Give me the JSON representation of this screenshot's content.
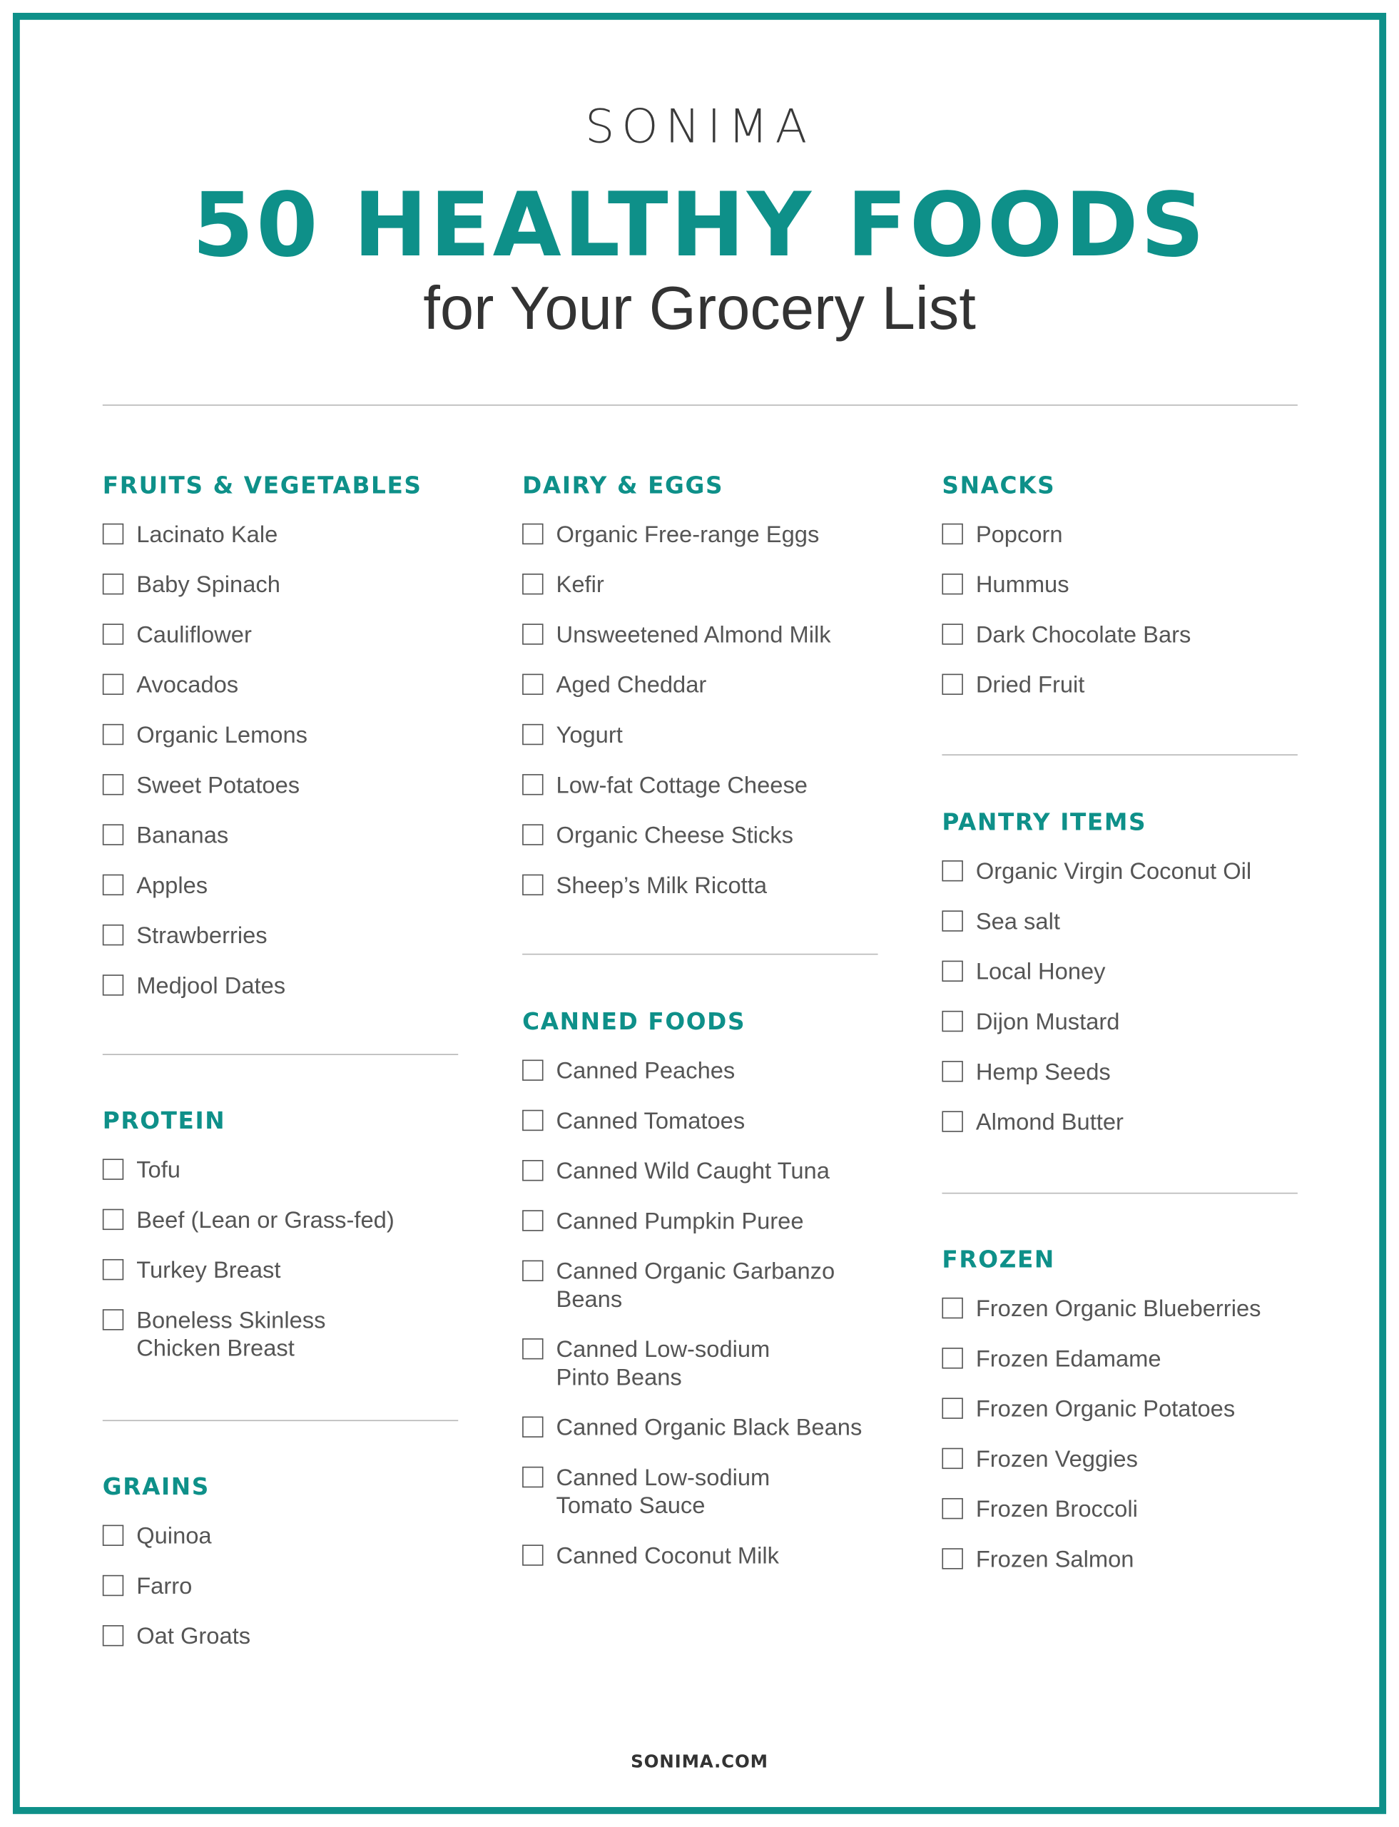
{
  "header": {
    "logo": "SONIMA",
    "title": "50 HEALTHY FOODS",
    "subtitle": "for Your Grocery List"
  },
  "colors": {
    "accent": "#0e9089",
    "text": "#555555",
    "rule": "#b8b8b8"
  },
  "columns": [
    [
      {
        "heading": "FRUITS & VEGETABLES",
        "items": [
          "Lacinato Kale",
          "Baby Spinach",
          "Cauliflower",
          "Avocados",
          "Organic Lemons",
          "Sweet Potatoes",
          "Bananas",
          "Apples",
          "Strawberries",
          "Medjool Dates"
        ]
      },
      {
        "heading": "PROTEIN",
        "items": [
          "Tofu",
          "Beef (Lean or Grass-fed)",
          "Turkey Breast",
          "Boneless Skinless\nChicken Breast"
        ]
      },
      {
        "heading": "GRAINS",
        "items": [
          "Quinoa",
          "Farro",
          "Oat Groats"
        ]
      }
    ],
    [
      {
        "heading": "DAIRY & EGGS",
        "items": [
          "Organic Free-range Eggs",
          "Kefir",
          "Unsweetened Almond Milk",
          "Aged Cheddar",
          "Yogurt",
          "Low-fat Cottage Cheese",
          "Organic Cheese Sticks",
          "Sheep’s Milk Ricotta"
        ]
      },
      {
        "heading": "CANNED FOODS",
        "items": [
          "Canned Peaches",
          "Canned Tomatoes",
          "Canned Wild Caught Tuna",
          "Canned Pumpkin Puree",
          "Canned Organic Garbanzo\nBeans",
          "Canned Low-sodium\nPinto Beans",
          "Canned Organic Black Beans",
          "Canned Low-sodium\nTomato Sauce",
          "Canned Coconut Milk"
        ]
      }
    ],
    [
      {
        "heading": "SNACKS",
        "items": [
          "Popcorn",
          "Hummus",
          "Dark Chocolate Bars",
          "Dried Fruit"
        ]
      },
      {
        "heading": "PANTRY ITEMS",
        "items": [
          "Organic Virgin Coconut Oil",
          "Sea salt",
          "Local Honey",
          "Dijon Mustard",
          "Hemp Seeds",
          "Almond Butter"
        ]
      },
      {
        "heading": "FROZEN",
        "items": [
          "Frozen Organic Blueberries",
          "Frozen Edamame",
          "Frozen Organic Potatoes",
          "Frozen Veggies",
          "Frozen Broccoli",
          "Frozen Salmon"
        ]
      }
    ]
  ],
  "footer": {
    "text": "SONIMA.COM"
  }
}
